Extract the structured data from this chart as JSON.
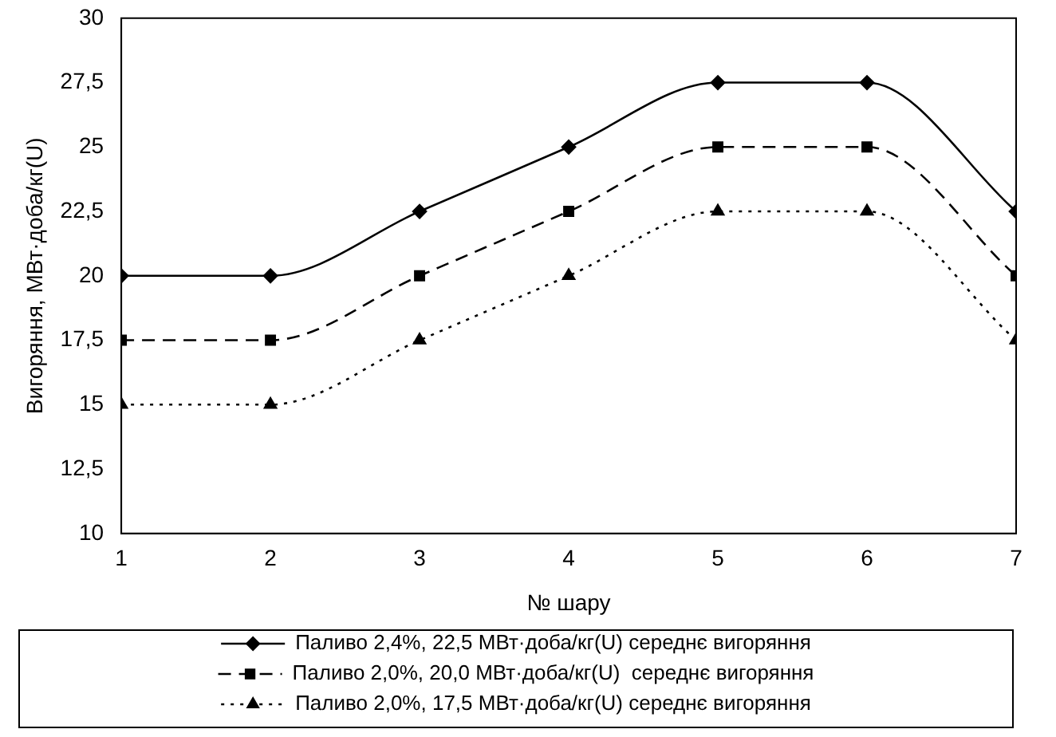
{
  "chart_data": {
    "type": "line",
    "xlabel": "№ шару",
    "ylabel": "Вигоряння, МВт·доба/кг(U)",
    "x": [
      1,
      2,
      3,
      4,
      5,
      6,
      7
    ],
    "xlim": [
      1,
      7
    ],
    "xticks": [
      1,
      2,
      3,
      4,
      5,
      6,
      7
    ],
    "ylim": [
      10,
      30
    ],
    "yticks": [
      10,
      {
        "value": 12.5,
        "label": "12,5"
      },
      15,
      {
        "value": 17.5,
        "label": "17,5"
      },
      20,
      {
        "value": 22.5,
        "label": "22,5"
      },
      25,
      {
        "value": 27.5,
        "label": "27,5"
      },
      30
    ],
    "grid": false,
    "legend": "bottom",
    "series": [
      {
        "name": "Паливо 2,4%, 22,5 МВт·доба/кг(U) середнє вигоряння",
        "color": "#000000",
        "marker": "diamond",
        "line_style": "solid",
        "values": [
          20,
          20,
          22.5,
          25,
          27.5,
          27.5,
          22.5
        ]
      },
      {
        "name": "Паливо 2,0%, 20,0 МВт·доба/кг(U)  середнє вигоряння",
        "color": "#000000",
        "marker": "square",
        "line_style": "dashed",
        "values": [
          17.5,
          17.5,
          20,
          22.5,
          25,
          25,
          20
        ]
      },
      {
        "name": "Паливо 2,0%, 17,5 МВт·доба/кг(U) середнє вигоряння",
        "color": "#000000",
        "marker": "triangle",
        "line_style": "dotted",
        "values": [
          15,
          15,
          17.5,
          20,
          22.5,
          22.5,
          17.5
        ]
      }
    ]
  }
}
